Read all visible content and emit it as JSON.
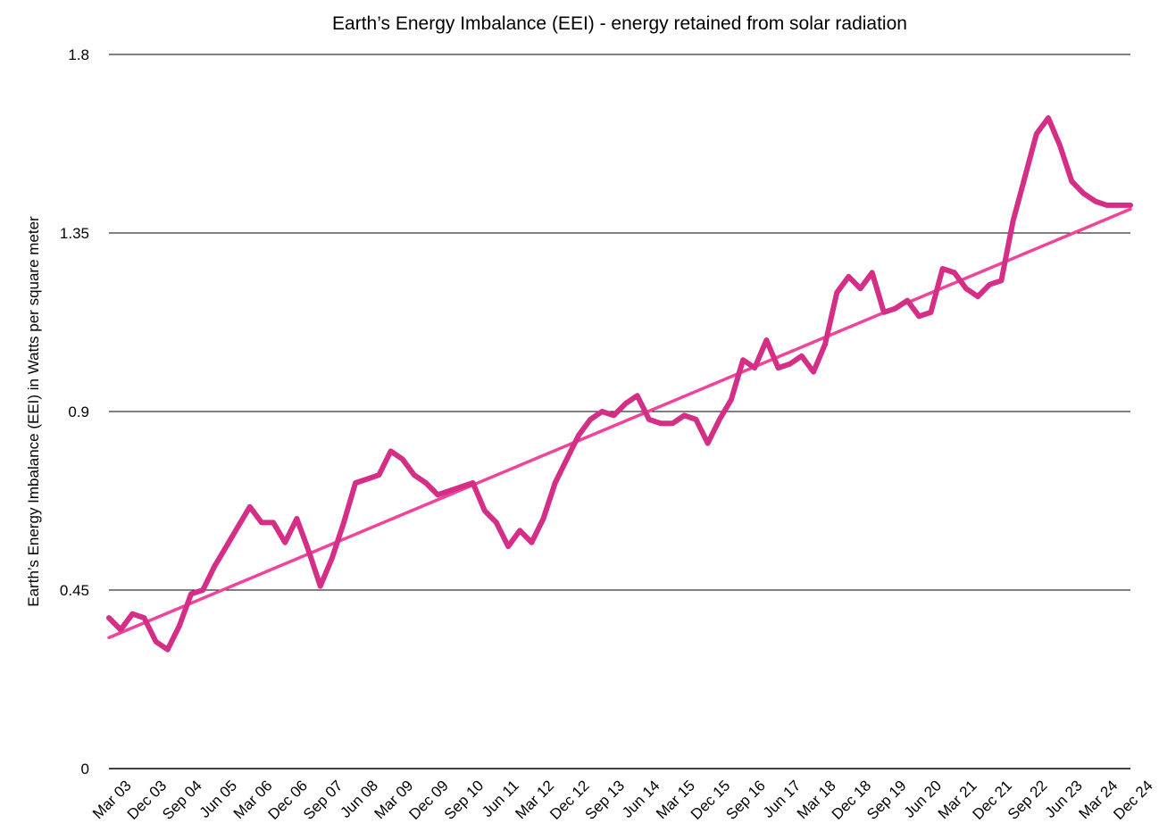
{
  "chart_data": {
    "type": "line",
    "title": "Earth’s Energy Imbalance (EEI) - energy retained from solar radiation",
    "xlabel": "",
    "ylabel": "Earth’s Energy Imbalance (EEI) in Watts per square meter",
    "ylim": [
      0,
      1.8
    ],
    "yticks": [
      "0",
      "0.45",
      "0.9",
      "1.35",
      "1.8"
    ],
    "ytick_values": [
      0,
      0.45,
      0.9,
      1.35,
      1.8
    ],
    "x_range": [
      "Mar 03",
      "Dec 24"
    ],
    "x_tick_labels": [
      "Mar 03",
      "Dec 03",
      "Sep 04",
      "Jun 05",
      "Mar 06",
      "Dec 06",
      "Sep 07",
      "Jun 08",
      "Mar 09",
      "Dec 09",
      "Sep 10",
      "Jun 11",
      "Mar 12",
      "Dec 12",
      "Sep 13",
      "Jun 14",
      "Mar 15",
      "Dec 15",
      "Sep 16",
      "Jun 17",
      "Mar 18",
      "Dec 18",
      "Sep 19",
      "Jun 20",
      "Mar 21",
      "Dec 21",
      "Sep 22",
      "Jun 23",
      "Mar 24",
      "Dec 24"
    ],
    "grid": "horizontal",
    "legend": "none",
    "colors": {
      "series": "#D42E86",
      "trend": "#F0449A",
      "grid": "#000000"
    },
    "series": [
      {
        "type": "line",
        "points": [
          [
            "Mar 03",
            0.38
          ],
          [
            "Jun 03",
            0.35
          ],
          [
            "Sep 03",
            0.39
          ],
          [
            "Dec 03",
            0.38
          ],
          [
            "Mar 04",
            0.32
          ],
          [
            "Jun 04",
            0.3
          ],
          [
            "Sep 04",
            0.36
          ],
          [
            "Dec 04",
            0.44
          ],
          [
            "Mar 05",
            0.45
          ],
          [
            "Jun 05",
            0.51
          ],
          [
            "Sep 05",
            0.56
          ],
          [
            "Dec 05",
            0.61
          ],
          [
            "Mar 06",
            0.66
          ],
          [
            "Jun 06",
            0.62
          ],
          [
            "Sep 06",
            0.62
          ],
          [
            "Dec 06",
            0.57
          ],
          [
            "Mar 07",
            0.63
          ],
          [
            "Jun 07",
            0.55
          ],
          [
            "Sep 07",
            0.46
          ],
          [
            "Dec 07",
            0.53
          ],
          [
            "Mar 08",
            0.62
          ],
          [
            "Jun 08",
            0.72
          ],
          [
            "Sep 08",
            0.73
          ],
          [
            "Dec 08",
            0.74
          ],
          [
            "Mar 09",
            0.8
          ],
          [
            "Jun 09",
            0.78
          ],
          [
            "Sep 09",
            0.74
          ],
          [
            "Dec 09",
            0.72
          ],
          [
            "Mar 10",
            0.69
          ],
          [
            "Jun 10",
            0.7
          ],
          [
            "Sep 10",
            0.71
          ],
          [
            "Dec 10",
            0.72
          ],
          [
            "Mar 11",
            0.65
          ],
          [
            "Jun 11",
            0.62
          ],
          [
            "Sep 11",
            0.56
          ],
          [
            "Dec 11",
            0.6
          ],
          [
            "Mar 12",
            0.57
          ],
          [
            "Jun 12",
            0.63
          ],
          [
            "Sep 12",
            0.72
          ],
          [
            "Dec 12",
            0.78
          ],
          [
            "Mar 13",
            0.84
          ],
          [
            "Jun 13",
            0.88
          ],
          [
            "Sep 13",
            0.9
          ],
          [
            "Dec 13",
            0.89
          ],
          [
            "Mar 14",
            0.92
          ],
          [
            "Jun 14",
            0.94
          ],
          [
            "Sep 14",
            0.88
          ],
          [
            "Dec 14",
            0.87
          ],
          [
            "Mar 15",
            0.87
          ],
          [
            "Jun 15",
            0.89
          ],
          [
            "Sep 15",
            0.88
          ],
          [
            "Dec 15",
            0.82
          ],
          [
            "Mar 16",
            0.88
          ],
          [
            "Jun 16",
            0.93
          ],
          [
            "Sep 16",
            1.03
          ],
          [
            "Dec 16",
            1.01
          ],
          [
            "Mar 17",
            1.08
          ],
          [
            "Jun 17",
            1.01
          ],
          [
            "Sep 17",
            1.02
          ],
          [
            "Dec 17",
            1.04
          ],
          [
            "Mar 18",
            1.0
          ],
          [
            "Jun 18",
            1.07
          ],
          [
            "Sep 18",
            1.2
          ],
          [
            "Dec 18",
            1.24
          ],
          [
            "Mar 19",
            1.21
          ],
          [
            "Jun 19",
            1.25
          ],
          [
            "Sep 19",
            1.15
          ],
          [
            "Dec 19",
            1.16
          ],
          [
            "Mar 20",
            1.18
          ],
          [
            "Jun 20",
            1.14
          ],
          [
            "Sep 20",
            1.15
          ],
          [
            "Dec 20",
            1.26
          ],
          [
            "Mar 21",
            1.25
          ],
          [
            "Jun 21",
            1.21
          ],
          [
            "Sep 21",
            1.19
          ],
          [
            "Dec 21",
            1.22
          ],
          [
            "Mar 22",
            1.23
          ],
          [
            "Jun 22",
            1.38
          ],
          [
            "Sep 22",
            1.49
          ],
          [
            "Dec 22",
            1.6
          ],
          [
            "Mar 23",
            1.64
          ],
          [
            "Jun 23",
            1.57
          ],
          [
            "Sep 23",
            1.48
          ],
          [
            "Dec 23",
            1.45
          ],
          [
            "Mar 24",
            1.43
          ],
          [
            "Jun 24",
            1.42
          ],
          [
            "Sep 24",
            1.42
          ],
          [
            "Dec 24",
            1.42
          ]
        ]
      },
      {
        "type": "linear-trend",
        "start": [
          "Mar 03",
          0.33
        ],
        "end": [
          "Dec 24",
          1.41
        ]
      }
    ]
  }
}
